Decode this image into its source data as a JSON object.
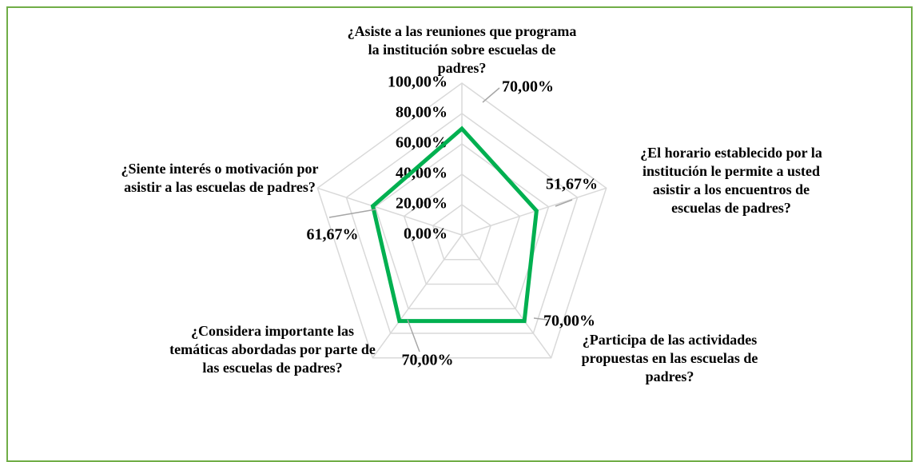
{
  "chart_data": {
    "type": "radar",
    "categories": [
      "¿Asiste a las reuniones que programa la institución sobre escuelas de padres?",
      "¿El horario establecido por la institución le permite a usted asistir a los encuentros de escuelas de padres?",
      "¿Participa de las actividades propuestas en las escuelas de padres?",
      "¿Considera importante las temáticas abordadas por parte de las escuelas de padres?",
      "¿Siente interés o motivación por asistir a las escuelas de padres?"
    ],
    "values": [
      70,
      51.67,
      70,
      70,
      61.67
    ],
    "value_labels": [
      "70,00%",
      "51,67%",
      "70,00%",
      "70,00%",
      "61,67%"
    ],
    "color": "#00b050",
    "ylim": [
      0,
      100
    ],
    "yticks": [
      {
        "value": 0,
        "label": "0,00%"
      },
      {
        "value": 20,
        "label": "20,00%"
      },
      {
        "value": 40,
        "label": "40,00%"
      },
      {
        "value": 60,
        "label": "60,00%"
      },
      {
        "value": 80,
        "label": "80,00%"
      },
      {
        "value": 100,
        "label": "100,00%"
      }
    ],
    "grid": true
  }
}
